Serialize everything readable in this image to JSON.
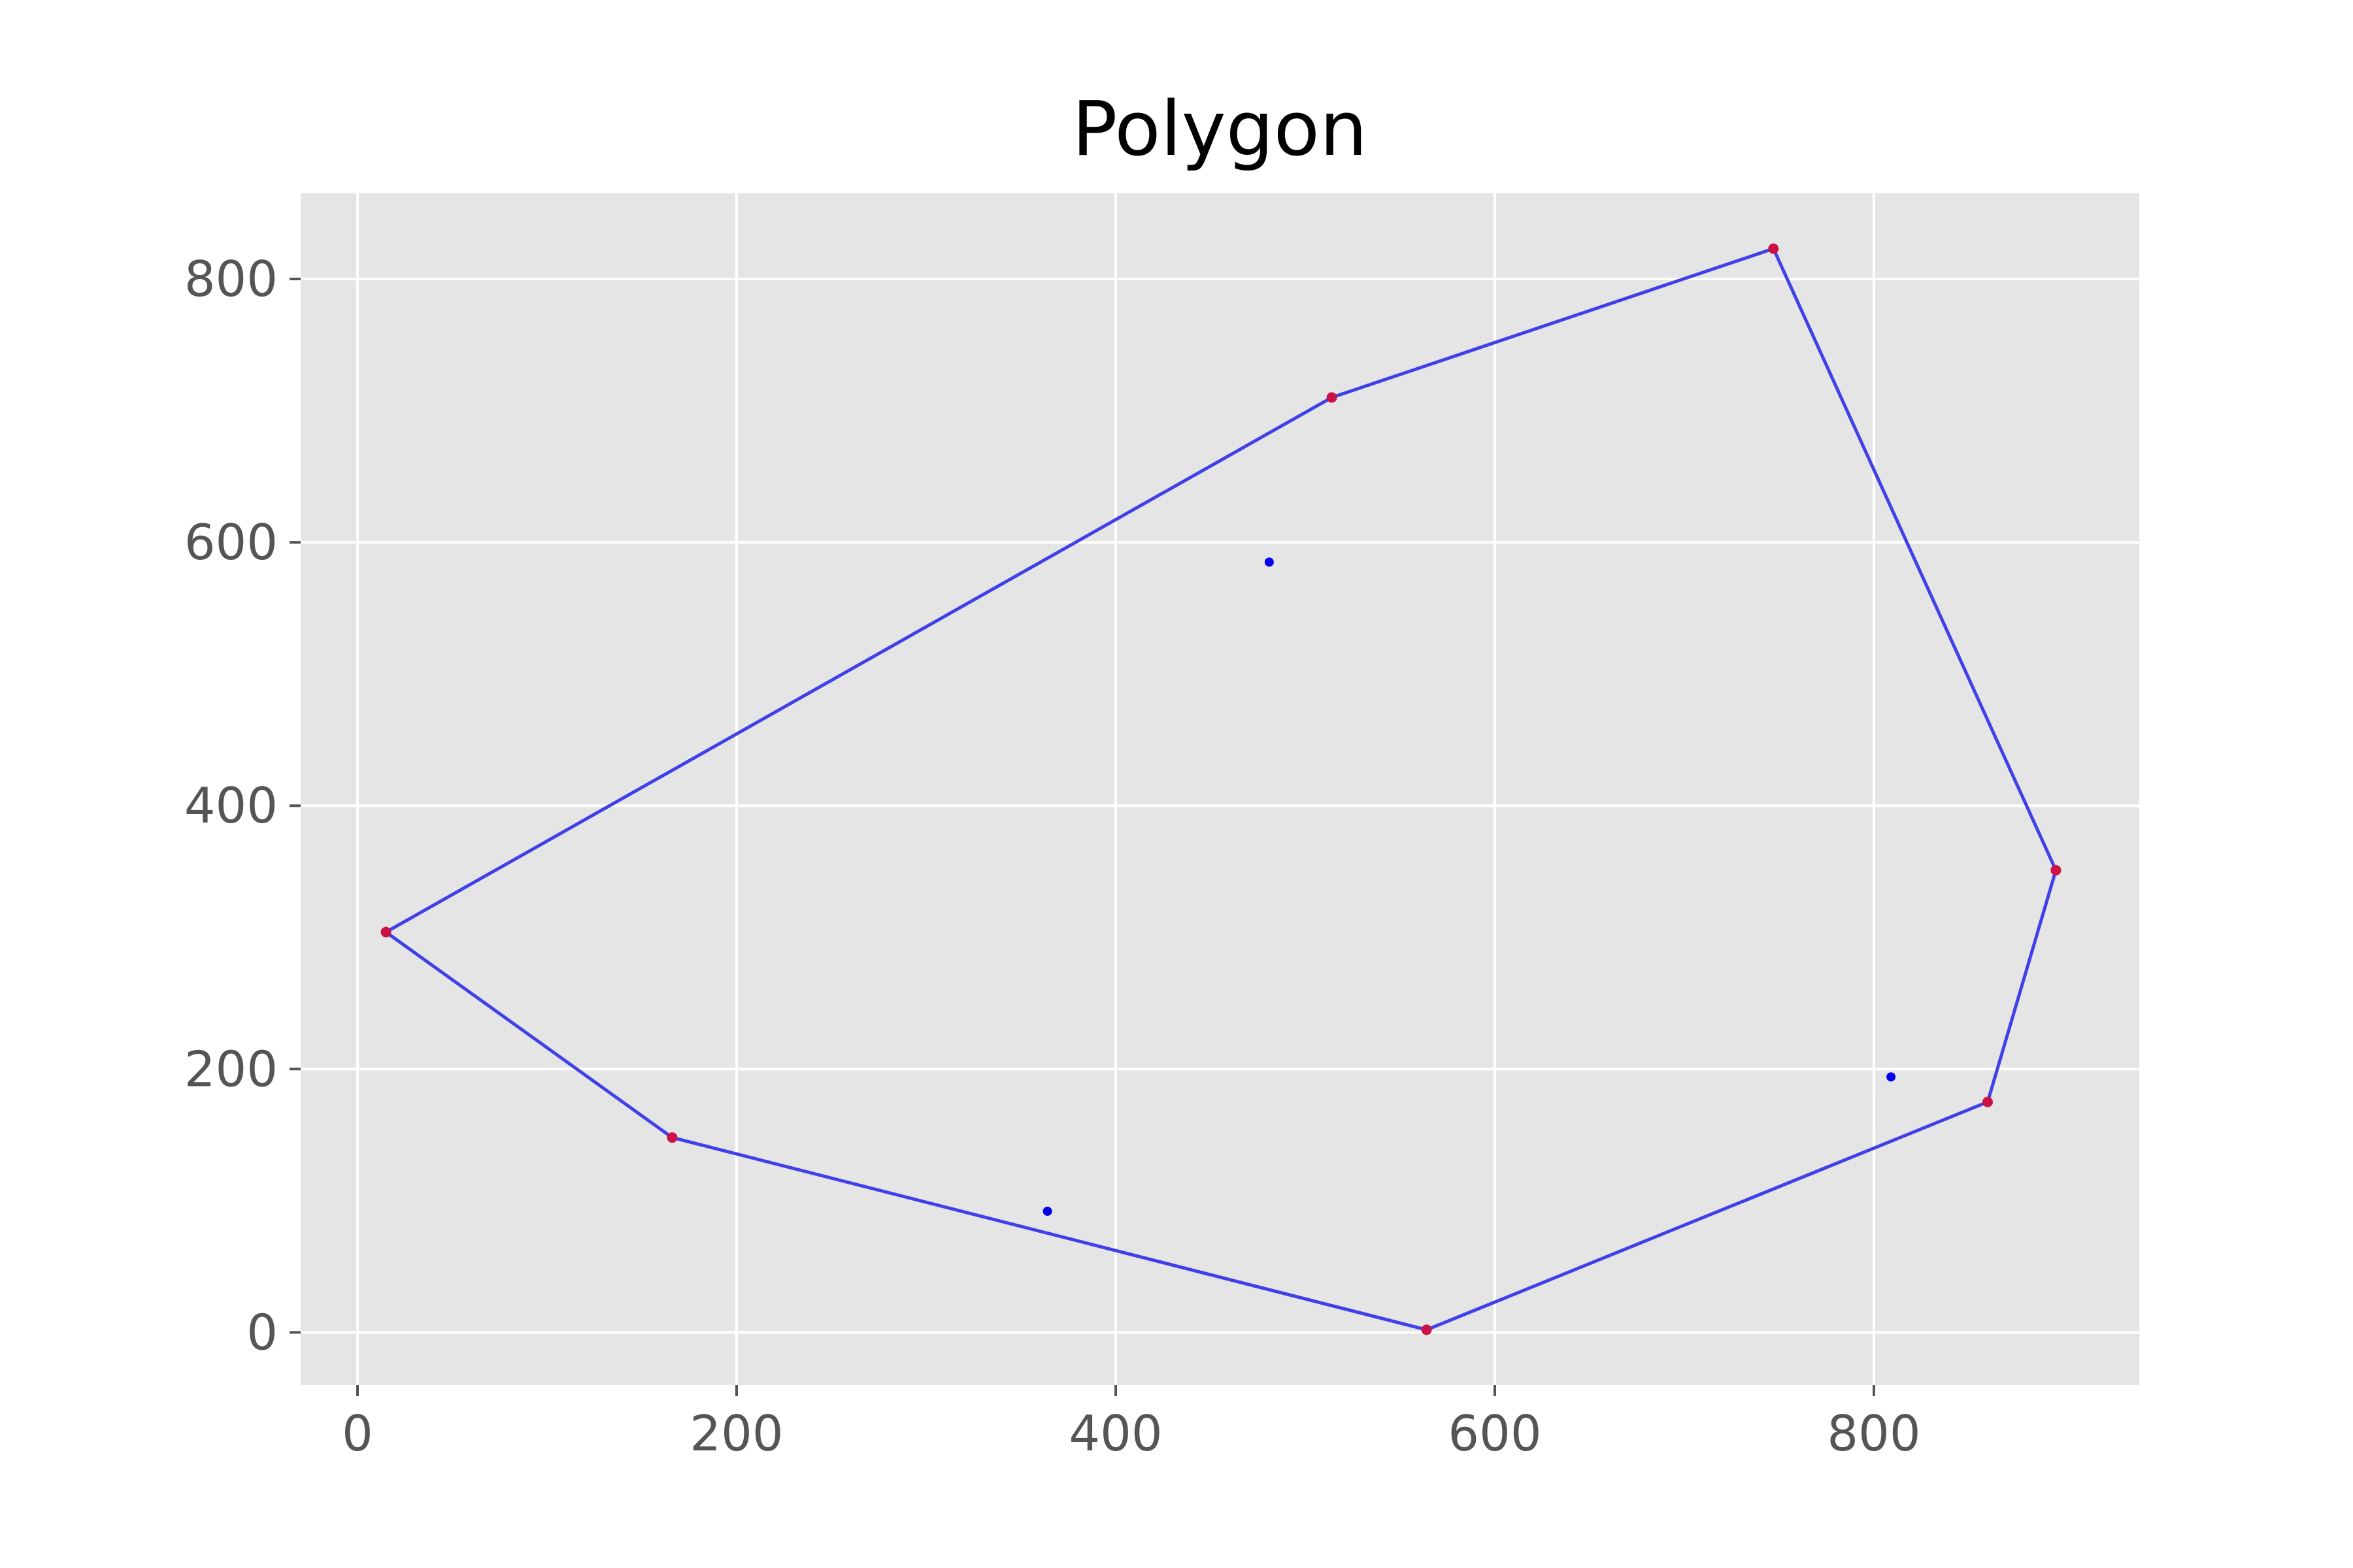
{
  "chart_data": {
    "type": "scatter",
    "title": "Polygon",
    "xlabel": "",
    "ylabel": "",
    "xlim": [
      -30,
      940
    ],
    "ylim": [
      -40,
      865
    ],
    "xticks": [
      0,
      200,
      400,
      600,
      800
    ],
    "yticks": [
      0,
      200,
      400,
      600,
      800
    ],
    "xtick_labels": [
      "0",
      "200",
      "400",
      "600",
      "800"
    ],
    "ytick_labels": [
      "0",
      "200",
      "400",
      "600",
      "800"
    ],
    "grid": true,
    "colors": {
      "background": "#e5e5e5",
      "grid": "#ffffff",
      "polygon_line": "#4040e8",
      "hull_vertex": "#cc1144",
      "interior_point": "#0000ee"
    },
    "polygon": [
      {
        "x": 15,
        "y": 304
      },
      {
        "x": 514,
        "y": 710
      },
      {
        "x": 747,
        "y": 823
      },
      {
        "x": 896,
        "y": 351
      },
      {
        "x": 860,
        "y": 175
      },
      {
        "x": 564,
        "y": 2
      },
      {
        "x": 166,
        "y": 148
      }
    ],
    "interior_points": [
      {
        "x": 481,
        "y": 585
      },
      {
        "x": 364,
        "y": 92
      },
      {
        "x": 809,
        "y": 194
      }
    ]
  }
}
